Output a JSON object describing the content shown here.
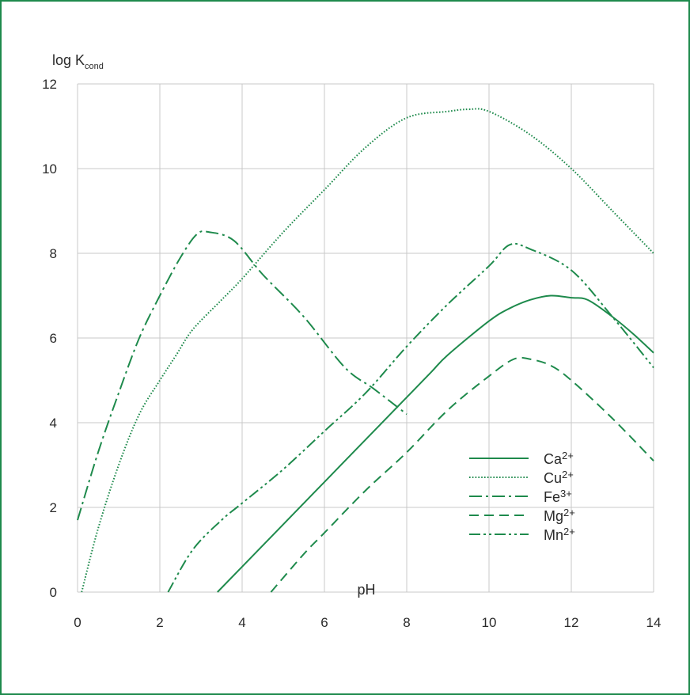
{
  "chart_data": {
    "type": "line",
    "ylabel_main": "log K",
    "ylabel_sub": "cond",
    "xlabel": "pH",
    "xlim": [
      0,
      14
    ],
    "ylim": [
      0,
      12
    ],
    "xticks": [
      "0",
      "2",
      "4",
      "6",
      "8",
      "10",
      "12",
      "14"
    ],
    "yticks": [
      "0",
      "2",
      "4",
      "6",
      "8",
      "10",
      "12"
    ],
    "grid": true,
    "legend_position": "bottom-right",
    "line_color": "#1e8a4c",
    "grid_color": "#c8c8c8",
    "series": [
      {
        "name": "Ca",
        "charge": "2+",
        "style": "solid",
        "points": [
          [
            3.4,
            0
          ],
          [
            4,
            0.6
          ],
          [
            5,
            1.6
          ],
          [
            6,
            2.6
          ],
          [
            7,
            3.6
          ],
          [
            8,
            4.6
          ],
          [
            8.6,
            5.2
          ],
          [
            9,
            5.6
          ],
          [
            10,
            6.4
          ],
          [
            10.5,
            6.7
          ],
          [
            11,
            6.9
          ],
          [
            11.5,
            7.0
          ],
          [
            12,
            6.95
          ],
          [
            12.4,
            6.9
          ],
          [
            13,
            6.5
          ],
          [
            13.5,
            6.1
          ],
          [
            14,
            5.65
          ]
        ]
      },
      {
        "name": "Cu",
        "charge": "2+",
        "style": "dotted",
        "points": [
          [
            0.1,
            0
          ],
          [
            0.5,
            1.5
          ],
          [
            1,
            3
          ],
          [
            1.5,
            4.2
          ],
          [
            2,
            5
          ],
          [
            2.4,
            5.6
          ],
          [
            2.8,
            6.2
          ],
          [
            3.5,
            6.9
          ],
          [
            4,
            7.4
          ],
          [
            5,
            8.5
          ],
          [
            6,
            9.5
          ],
          [
            7,
            10.5
          ],
          [
            8,
            11.2
          ],
          [
            9,
            11.35
          ],
          [
            9.5,
            11.4
          ],
          [
            10,
            11.35
          ],
          [
            11,
            10.8
          ],
          [
            12,
            10
          ],
          [
            13,
            9
          ],
          [
            14,
            8
          ]
        ]
      },
      {
        "name": "Fe",
        "charge": "3+",
        "style": "dashdot",
        "points": [
          [
            0,
            1.7
          ],
          [
            0.5,
            3.3
          ],
          [
            1,
            4.7
          ],
          [
            1.5,
            6
          ],
          [
            2,
            7
          ],
          [
            2.5,
            7.9
          ],
          [
            2.9,
            8.45
          ],
          [
            3.2,
            8.5
          ],
          [
            3.8,
            8.3
          ],
          [
            4.5,
            7.5
          ],
          [
            5.5,
            6.5
          ],
          [
            6.5,
            5.3
          ],
          [
            7.2,
            4.8
          ],
          [
            8,
            4.2
          ]
        ]
      },
      {
        "name": "Mg",
        "charge": "2+",
        "style": "dashed",
        "points": [
          [
            4.7,
            0
          ],
          [
            5.5,
            0.9
          ],
          [
            6,
            1.4
          ],
          [
            7,
            2.4
          ],
          [
            8,
            3.3
          ],
          [
            9,
            4.3
          ],
          [
            10,
            5.1
          ],
          [
            10.6,
            5.5
          ],
          [
            11,
            5.5
          ],
          [
            11.5,
            5.35
          ],
          [
            12,
            5.0
          ],
          [
            13,
            4.1
          ],
          [
            14,
            3.1
          ]
        ]
      },
      {
        "name": "Mn",
        "charge": "2+",
        "style": "dashdotdot",
        "points": [
          [
            2.2,
            0
          ],
          [
            2.8,
            1
          ],
          [
            3.5,
            1.7
          ],
          [
            4,
            2.1
          ],
          [
            5,
            2.9
          ],
          [
            6,
            3.8
          ],
          [
            7,
            4.7
          ],
          [
            8,
            5.8
          ],
          [
            9,
            6.8
          ],
          [
            10,
            7.7
          ],
          [
            10.5,
            8.2
          ],
          [
            11,
            8.1
          ],
          [
            12,
            7.6
          ],
          [
            13,
            6.5
          ],
          [
            14,
            5.3
          ]
        ]
      }
    ]
  }
}
